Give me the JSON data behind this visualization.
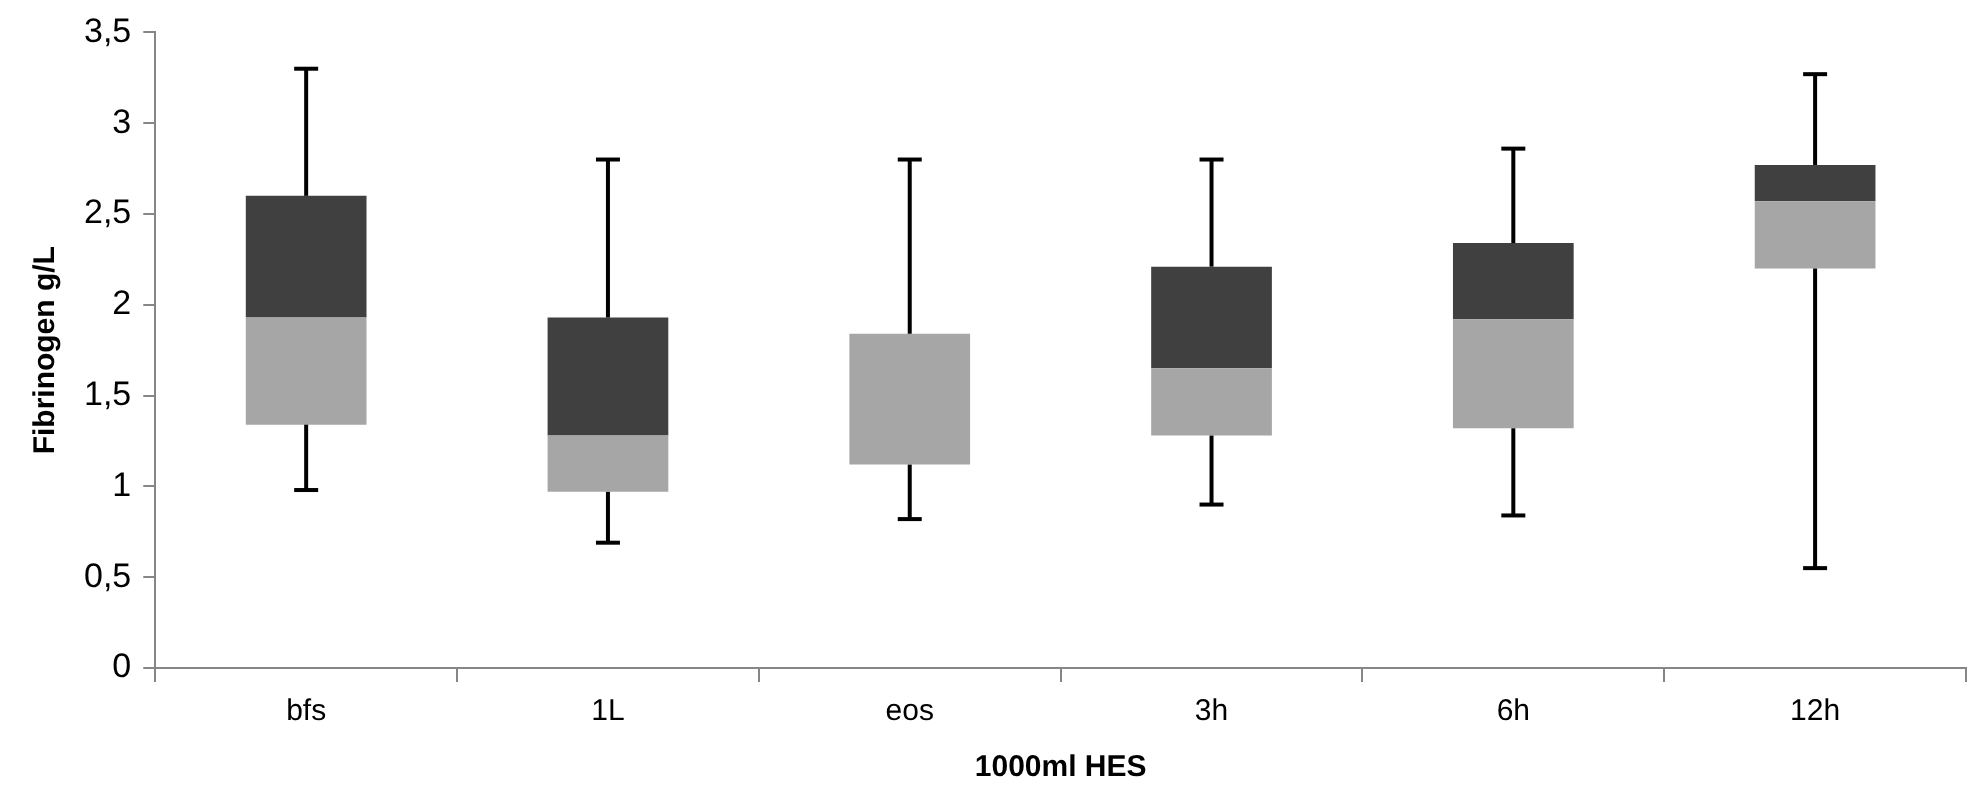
{
  "chart_data": {
    "type": "box",
    "xlabel": "1000ml HES",
    "ylabel": "Fibrinogen g/L",
    "categories": [
      "bfs",
      "1L",
      "eos",
      "3h",
      "6h",
      "12h"
    ],
    "series": [
      {
        "color": "#404040",
        "colors": [
          "#a6a6a6",
          "#a6a6a6",
          "#a6a6a6",
          "#a6a6a6",
          "#a6a6a6",
          "#a6a6a6"
        ],
        "boxes": [
          {
            "low": 0.98,
            "q1": 1.34,
            "median": 1.93,
            "q3": 2.6,
            "high": 3.3
          },
          {
            "low": 0.69,
            "q1": 0.97,
            "median": 1.28,
            "q3": 1.93,
            "high": 2.8
          },
          {
            "low": 0.82,
            "q1": 1.12,
            "median": 1.84,
            "q3": 1.84,
            "high": 2.8
          },
          {
            "low": 0.9,
            "q1": 1.28,
            "median": 1.65,
            "q3": 2.21,
            "high": 2.8
          },
          {
            "low": 0.84,
            "q1": 1.32,
            "median": 1.92,
            "q3": 2.34,
            "high": 2.86
          },
          {
            "low": 0.55,
            "q1": 2.2,
            "median": 2.57,
            "q3": 2.77,
            "high": 3.27
          }
        ]
      }
    ],
    "ylim": [
      0,
      3.5
    ],
    "yticks": [
      0,
      {
        "value": 0.5,
        "label": "0,5"
      },
      1,
      {
        "value": 1.5,
        "label": "1,5"
      },
      2,
      {
        "value": 2.5,
        "label": "2,5"
      },
      3,
      {
        "value": 3.5,
        "label": "3,5"
      }
    ],
    "grid": false,
    "legend": false
  }
}
